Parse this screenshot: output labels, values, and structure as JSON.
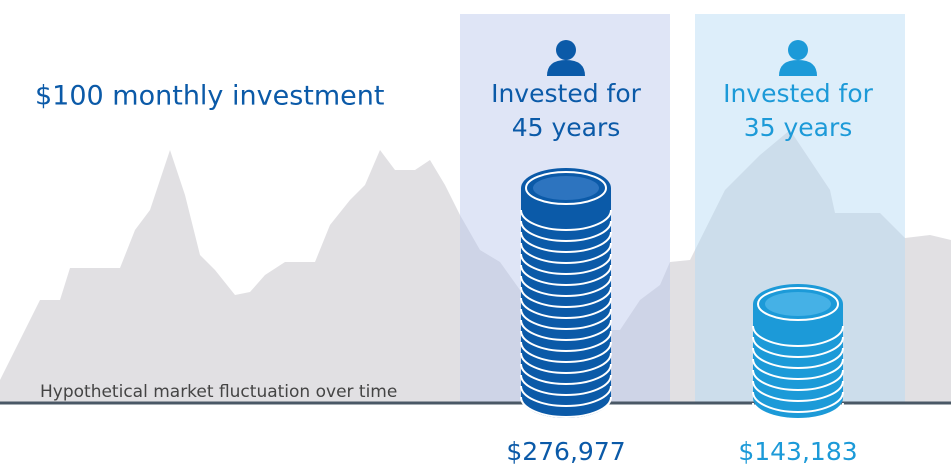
{
  "title": "$100 monthly investment",
  "caption": "Hypothetical market fluctuation over time",
  "panels": [
    {
      "line1": "Invested for",
      "line2": "45 years",
      "amount": "$276,977"
    },
    {
      "line1": "Invested for",
      "line2": "35 years",
      "amount": "$143,183"
    }
  ]
}
